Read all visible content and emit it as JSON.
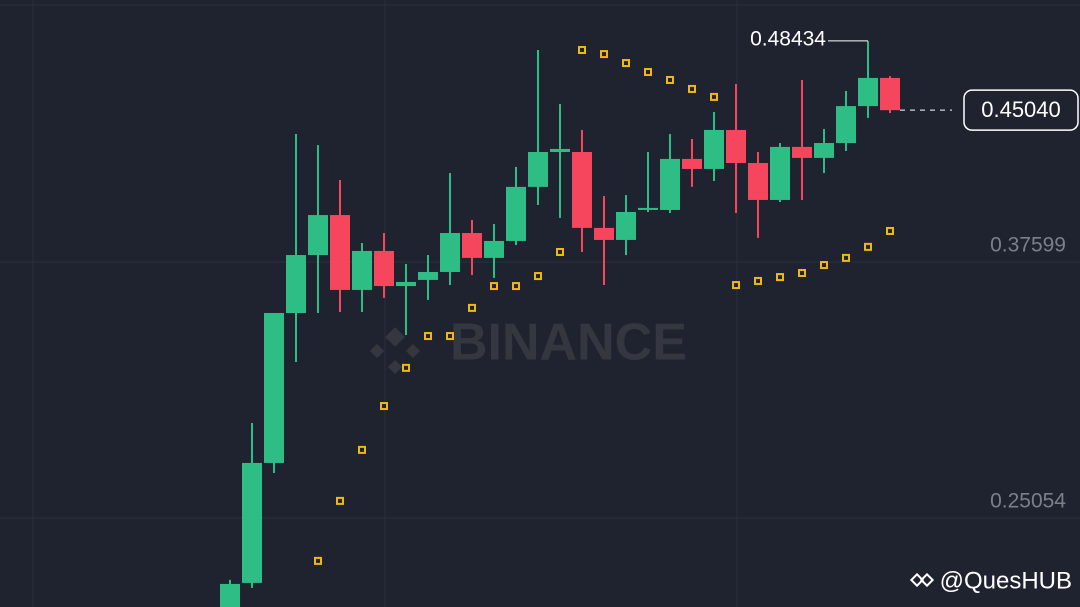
{
  "chart_data": {
    "type": "candlestick",
    "up_color": "#2ebd85",
    "down_color": "#f6465d",
    "sar_color": "#f0b90b",
    "ylim": [
      0.2069,
      0.5044
    ],
    "yticks": [
      0.37599,
      0.25054
    ],
    "grid": true,
    "candles": [
      {
        "open": 0.203,
        "high": 0.2202,
        "low": 0.2006,
        "close": 0.2182
      },
      {
        "open": 0.2187,
        "high": 0.2971,
        "low": 0.2163,
        "close": 0.2775
      },
      {
        "open": 0.2775,
        "high": 0.351,
        "low": 0.2726,
        "close": 0.351
      },
      {
        "open": 0.351,
        "high": 0.4387,
        "low": 0.327,
        "close": 0.3794
      },
      {
        "open": 0.3794,
        "high": 0.4333,
        "low": 0.351,
        "close": 0.399
      },
      {
        "open": 0.399,
        "high": 0.4162,
        "low": 0.3515,
        "close": 0.3623
      },
      {
        "open": 0.3623,
        "high": 0.3853,
        "low": 0.3515,
        "close": 0.3814
      },
      {
        "open": 0.3814,
        "high": 0.3902,
        "low": 0.3584,
        "close": 0.3642
      },
      {
        "open": 0.3642,
        "high": 0.375,
        "low": 0.3402,
        "close": 0.3662
      },
      {
        "open": 0.3672,
        "high": 0.3794,
        "low": 0.3574,
        "close": 0.3711
      },
      {
        "open": 0.3711,
        "high": 0.4196,
        "low": 0.3647,
        "close": 0.3902
      },
      {
        "open": 0.3902,
        "high": 0.3966,
        "low": 0.3696,
        "close": 0.378
      },
      {
        "open": 0.378,
        "high": 0.3946,
        "low": 0.3682,
        "close": 0.3863
      },
      {
        "open": 0.3863,
        "high": 0.4226,
        "low": 0.3843,
        "close": 0.4128
      },
      {
        "open": 0.4128,
        "high": 0.4799,
        "low": 0.4039,
        "close": 0.4299
      },
      {
        "open": 0.4299,
        "high": 0.4534,
        "low": 0.3976,
        "close": 0.4314
      },
      {
        "open": 0.4299,
        "high": 0.4407,
        "low": 0.3809,
        "close": 0.3927
      },
      {
        "open": 0.3927,
        "high": 0.4083,
        "low": 0.3647,
        "close": 0.3868
      },
      {
        "open": 0.3868,
        "high": 0.4088,
        "low": 0.3794,
        "close": 0.4005
      },
      {
        "open": 0.4015,
        "high": 0.4299,
        "low": 0.4005,
        "close": 0.4025
      },
      {
        "open": 0.4015,
        "high": 0.4387,
        "low": 0.4,
        "close": 0.4265
      },
      {
        "open": 0.4265,
        "high": 0.4363,
        "low": 0.4128,
        "close": 0.4216
      },
      {
        "open": 0.4216,
        "high": 0.4495,
        "low": 0.4157,
        "close": 0.4407
      },
      {
        "open": 0.4407,
        "high": 0.4632,
        "low": 0.4,
        "close": 0.4245
      },
      {
        "open": 0.4245,
        "high": 0.4299,
        "low": 0.3878,
        "close": 0.4064
      },
      {
        "open": 0.4064,
        "high": 0.4343,
        "low": 0.4054,
        "close": 0.4324
      },
      {
        "open": 0.4324,
        "high": 0.4652,
        "low": 0.4064,
        "close": 0.427
      },
      {
        "open": 0.427,
        "high": 0.4412,
        "low": 0.4196,
        "close": 0.4343
      },
      {
        "open": 0.4343,
        "high": 0.4598,
        "low": 0.4304,
        "close": 0.4524
      },
      {
        "open": 0.4524,
        "high": 0.48434,
        "low": 0.4466,
        "close": 0.4662
      },
      {
        "open": 0.4662,
        "high": 0.4671,
        "low": 0.449,
        "close": 0.4504
      }
    ],
    "sar": [
      null,
      null,
      null,
      null,
      0.2295,
      0.2589,
      0.2839,
      0.3054,
      0.3241,
      0.3397,
      0.3397,
      0.3535,
      0.3642,
      0.3642,
      0.3691,
      0.3809,
      0.4799,
      0.4779,
      0.4735,
      0.4691,
      0.4652,
      0.4608,
      0.4569,
      0.3647,
      0.3667,
      0.3686,
      0.3706,
      0.3745,
      0.378,
      0.3834,
      0.3912
    ],
    "high_label": "0.48434",
    "last_price_label": "0.45040",
    "watermark": "BINANCE",
    "credit": "@QuesHUB"
  }
}
